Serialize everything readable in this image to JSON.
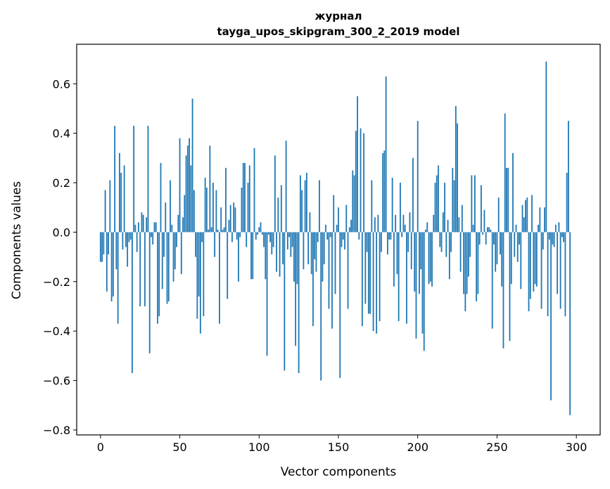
{
  "chart_data": {
    "type": "bar",
    "title": "журнал",
    "subtitle": "tayga_upos_skipgram_300_2_2019 model",
    "xlabel": "Vector components",
    "ylabel": "Components values",
    "xlim": [
      -15,
      315
    ],
    "ylim": [
      -0.82,
      0.76
    ],
    "x_ticks": [
      0,
      50,
      100,
      150,
      200,
      250,
      300
    ],
    "x_tick_labels": [
      "0",
      "50",
      "100",
      "150",
      "200",
      "250",
      "300"
    ],
    "y_ticks": [
      -0.8,
      -0.6,
      -0.4,
      -0.2,
      0.0,
      0.2,
      0.4,
      0.6
    ],
    "y_tick_labels": [
      "−0.8",
      "−0.6",
      "−0.4",
      "−0.2",
      "0.0",
      "0.2",
      "0.4",
      "0.6"
    ],
    "grid": false,
    "bar_color": "#1f77b4",
    "series": [
      {
        "values": [
          -0.12,
          -0.12,
          -0.09,
          0.17,
          -0.24,
          -0.09,
          0.21,
          -0.28,
          -0.26,
          0.43,
          -0.15,
          -0.37,
          0.32,
          0.24,
          -0.07,
          0.27,
          -0.06,
          -0.14,
          -0.04,
          -0.03,
          -0.57,
          0.43,
          0.03,
          -0.08,
          0.04,
          -0.3,
          0.08,
          0.07,
          -0.3,
          0.06,
          0.43,
          -0.49,
          -0.02,
          -0.05,
          0.04,
          0.04,
          -0.37,
          -0.34,
          0.28,
          -0.23,
          -0.1,
          0.12,
          -0.29,
          -0.28,
          0.21,
          0.03,
          -0.2,
          -0.15,
          -0.06,
          0.07,
          0.38,
          -0.17,
          0.06,
          0.15,
          0.31,
          0.35,
          0.38,
          0.27,
          0.54,
          0.17,
          -0.1,
          -0.35,
          -0.26,
          -0.41,
          -0.04,
          -0.34,
          0.22,
          0.18,
          0.01,
          0.35,
          0.02,
          0.2,
          -0.1,
          0.17,
          0.01,
          -0.37,
          0.1,
          0.01,
          0.02,
          0.26,
          -0.27,
          0.05,
          0.11,
          -0.04,
          0.12,
          0.1,
          -0.03,
          -0.2,
          -0.02,
          0.18,
          0.28,
          0.28,
          -0.06,
          0.2,
          0.27,
          -0.19,
          -0.19,
          0.34,
          -0.03,
          -0.01,
          0.02,
          0.04,
          -0.01,
          -0.06,
          -0.19,
          -0.5,
          -0.01,
          -0.04,
          -0.09,
          -0.06,
          0.31,
          -0.16,
          0.14,
          -0.18,
          0.19,
          -0.13,
          -0.56,
          0.37,
          -0.07,
          -0.02,
          -0.1,
          -0.06,
          -0.2,
          -0.46,
          -0.21,
          -0.57,
          0.23,
          0.17,
          -0.15,
          0.21,
          0.24,
          -0.13,
          0.08,
          -0.17,
          -0.38,
          -0.11,
          -0.16,
          -0.04,
          0.21,
          -0.6,
          -0.2,
          -0.13,
          0.03,
          -0.03,
          -0.31,
          -0.02,
          -0.39,
          0.15,
          -0.25,
          0.03,
          0.1,
          -0.59,
          -0.06,
          -0.03,
          -0.07,
          0.11,
          -0.31,
          0.02,
          0.05,
          0.25,
          0.23,
          0.41,
          0.55,
          -0.03,
          0.42,
          -0.38,
          0.4,
          -0.29,
          -0.08,
          -0.33,
          -0.33,
          0.21,
          -0.4,
          0.06,
          -0.41,
          0.07,
          -0.36,
          -0.08,
          0.32,
          0.33,
          0.63,
          -0.09,
          -0.03,
          -0.03,
          0.22,
          -0.22,
          0.07,
          -0.17,
          -0.36,
          0.2,
          -0.02,
          0.07,
          0.03,
          -0.37,
          -0.08,
          0.08,
          -0.15,
          0.3,
          -0.24,
          -0.43,
          0.45,
          -0.25,
          -0.15,
          -0.41,
          -0.48,
          0.01,
          0.04,
          -0.21,
          -0.2,
          -0.22,
          0.07,
          0.2,
          0.23,
          0.27,
          -0.06,
          -0.08,
          0.08,
          0.2,
          -0.1,
          0.05,
          -0.19,
          -0.08,
          0.26,
          0.21,
          0.51,
          0.44,
          0.06,
          -0.16,
          0.11,
          -0.25,
          -0.32,
          -0.25,
          -0.18,
          -0.1,
          0.23,
          0.03,
          0.23,
          -0.28,
          -0.25,
          -0.05,
          0.19,
          -0.01,
          0.09,
          -0.05,
          0.02,
          0.02,
          0.01,
          -0.39,
          -0.05,
          -0.16,
          -0.13,
          0.14,
          -0.09,
          -0.22,
          -0.47,
          0.48,
          0.26,
          0.26,
          -0.44,
          -0.21,
          0.32,
          -0.1,
          0.03,
          -0.12,
          -0.05,
          -0.23,
          0.11,
          0.06,
          0.13,
          0.14,
          -0.32,
          -0.27,
          0.15,
          -0.24,
          -0.21,
          -0.22,
          0.03,
          0.1,
          -0.31,
          -0.07,
          0.1,
          0.69,
          -0.34,
          -0.03,
          -0.68,
          -0.05,
          -0.06,
          0.03,
          -0.25,
          0.04,
          -0.31,
          -0.02,
          -0.04,
          -0.34,
          0.24,
          0.45,
          -0.74
        ]
      }
    ]
  }
}
